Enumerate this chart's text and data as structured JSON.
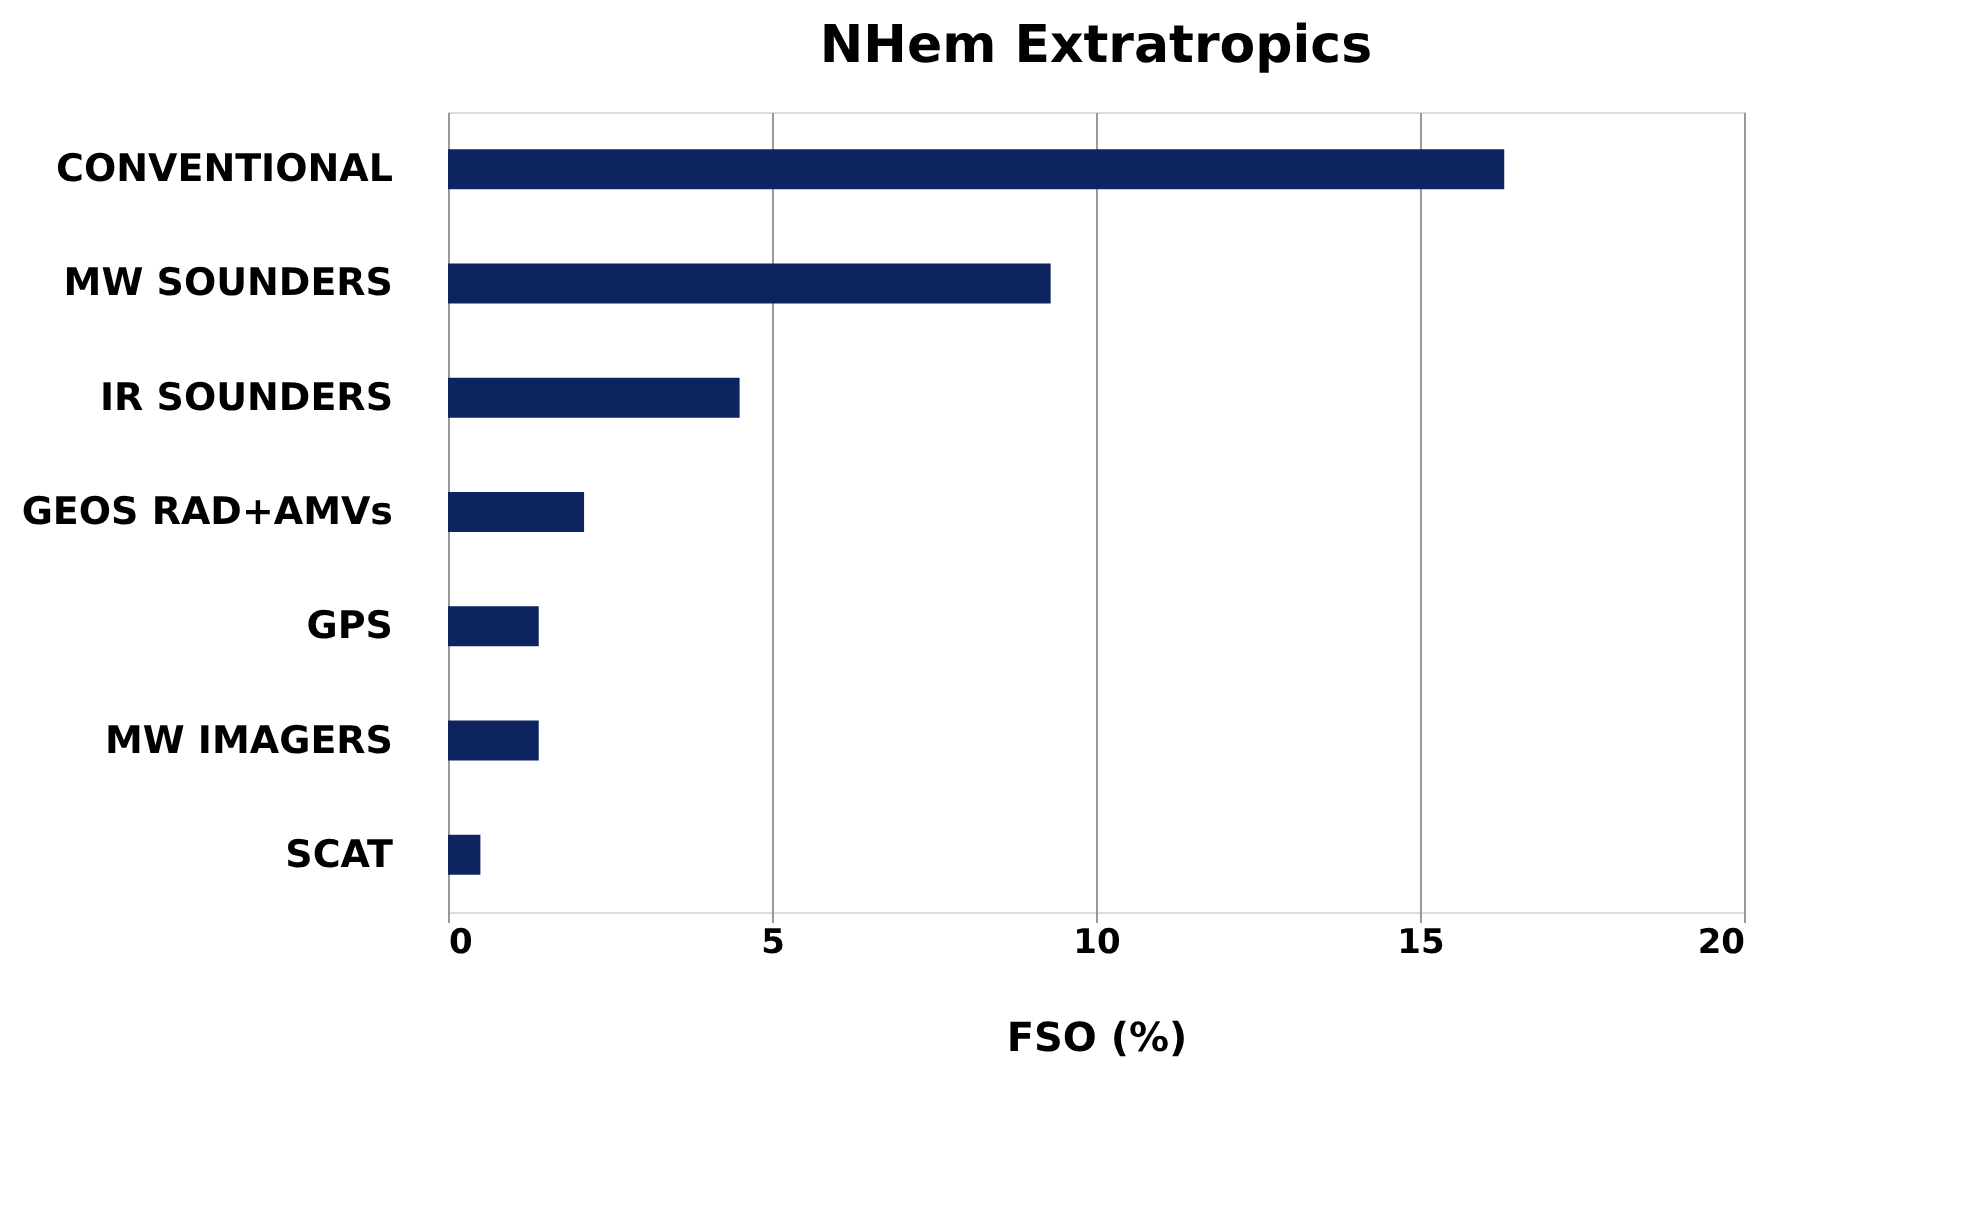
{
  "chart_data": {
    "type": "bar",
    "orientation": "horizontal",
    "title": "NHem Extratropics",
    "xlabel": "FSO (%)",
    "categories": [
      "CONVENTIONAL",
      "MW SOUNDERS",
      "IR SOUNDERS",
      "GEOS RAD+AMVs",
      "GPS",
      "MW IMAGERS",
      "SCAT"
    ],
    "values": [
      16.3,
      9.3,
      4.5,
      2.1,
      1.4,
      1.4,
      0.5
    ],
    "color": "#0d2461",
    "xlim": [
      0,
      20
    ],
    "xticks": [
      0,
      5,
      10,
      15,
      20
    ],
    "grid": "x"
  }
}
